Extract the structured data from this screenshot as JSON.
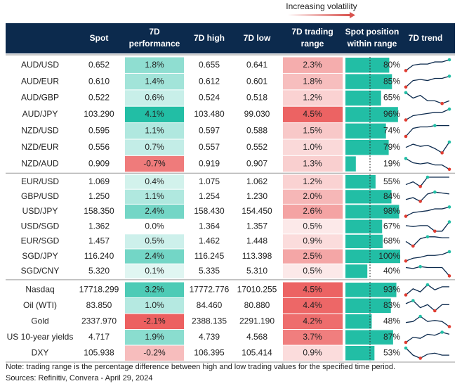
{
  "header": {
    "top_label": "Increasing volatility",
    "columns": [
      [
        "Spot"
      ],
      [
        "7D",
        "performance"
      ],
      [
        "7D high"
      ],
      [
        "7D low"
      ],
      [
        "7D trading",
        "range"
      ],
      [
        "Spot position",
        "within range"
      ],
      [
        "7D trend"
      ]
    ]
  },
  "groups": [
    {
      "rows": [
        {
          "name": "AUD/USD",
          "spot": "0.652",
          "perf": {
            "value": 1.8,
            "label": "1.8%"
          },
          "high": "0.655",
          "low": "0.641",
          "range": {
            "value": 2.3,
            "label": "2.3%"
          },
          "position": {
            "value": 80,
            "label": "80%"
          },
          "trend": [
            0,
            5,
            6,
            6,
            8,
            8,
            10
          ]
        },
        {
          "name": "AUD/EUR",
          "spot": "0.610",
          "perf": {
            "value": 1.4,
            "label": "1.4%"
          },
          "high": "0.612",
          "low": "0.601",
          "range": {
            "value": 1.8,
            "label": "1.8%"
          },
          "position": {
            "value": 85,
            "label": "85%"
          },
          "trend": [
            0,
            6,
            7,
            6,
            8,
            8,
            10
          ]
        },
        {
          "name": "AUD/GBP",
          "spot": "0.522",
          "perf": {
            "value": 0.6,
            "label": "0.6%"
          },
          "high": "0.524",
          "low": "0.518",
          "range": {
            "value": 1.2,
            "label": "1.2%"
          },
          "position": {
            "value": 65,
            "label": "65%"
          },
          "trend": [
            10,
            8,
            9,
            7,
            7,
            6,
            7
          ]
        },
        {
          "name": "AUD/JPY",
          "spot": "103.290",
          "perf": {
            "value": 4.1,
            "label": "4.1%"
          },
          "high": "103.480",
          "low": "99.030",
          "range": {
            "value": 4.5,
            "label": "4.5%"
          },
          "position": {
            "value": 96,
            "label": "96%"
          },
          "trend": [
            0,
            4,
            5,
            6,
            7,
            7,
            10
          ]
        },
        {
          "name": "NZD/USD",
          "spot": "0.595",
          "perf": {
            "value": 1.1,
            "label": "1.1%"
          },
          "high": "0.597",
          "low": "0.588",
          "range": {
            "value": 1.5,
            "label": "1.5%"
          },
          "position": {
            "value": 74,
            "label": "74%"
          },
          "trend": [
            0,
            6,
            7,
            7,
            8,
            8,
            8
          ]
        },
        {
          "name": "NZD/EUR",
          "spot": "0.556",
          "perf": {
            "value": 0.7,
            "label": "0.7%"
          },
          "high": "0.557",
          "low": "0.552",
          "range": {
            "value": 1,
            "label": "1.0%"
          },
          "position": {
            "value": 79,
            "label": "79%"
          },
          "trend": [
            5,
            8,
            6,
            7,
            4,
            0,
            10
          ]
        },
        {
          "name": "NZD/AUD",
          "spot": "0.909",
          "perf": {
            "value": -0.7,
            "label": "-0.7%"
          },
          "high": "0.919",
          "low": "0.907",
          "range": {
            "value": 1.3,
            "label": "1.3%"
          },
          "position": {
            "value": 19,
            "label": "19%"
          },
          "trend": [
            10,
            6,
            5,
            6,
            4,
            4,
            0
          ]
        }
      ]
    },
    {
      "rows": [
        {
          "name": "EUR/USD",
          "spot": "1.069",
          "perf": {
            "value": 0.4,
            "label": "0.4%"
          },
          "high": "1.075",
          "low": "1.062",
          "range": {
            "value": 1.2,
            "label": "1.2%"
          },
          "position": {
            "value": 55,
            "label": "55%"
          },
          "trend": [
            2,
            5,
            0,
            10,
            10,
            10,
            10
          ]
        },
        {
          "name": "GBP/USD",
          "spot": "1.250",
          "perf": {
            "value": 1.1,
            "label": "1.1%"
          },
          "high": "1.254",
          "low": "1.230",
          "range": {
            "value": 2,
            "label": "2.0%"
          },
          "position": {
            "value": 84,
            "label": "84%"
          },
          "trend": [
            2,
            4,
            0,
            8,
            10,
            9,
            8
          ]
        },
        {
          "name": "USD/JPY",
          "spot": "158.350",
          "perf": {
            "value": 2.4,
            "label": "2.4%"
          },
          "high": "158.430",
          "low": "154.450",
          "range": {
            "value": 2.6,
            "label": "2.6%"
          },
          "position": {
            "value": 98,
            "label": "98%"
          },
          "trend": [
            0,
            4,
            5,
            6,
            8,
            8,
            10
          ]
        },
        {
          "name": "USD/SGD",
          "spot": "1.362",
          "perf": {
            "value": 0,
            "label": "0.0%"
          },
          "high": "1.364",
          "low": "1.357",
          "range": {
            "value": 0.5,
            "label": "0.5%"
          },
          "position": {
            "value": 67,
            "label": "67%"
          },
          "trend": [
            6,
            5,
            6,
            6,
            0,
            0,
            10
          ]
        },
        {
          "name": "EUR/SGD",
          "spot": "1.457",
          "perf": {
            "value": 0.5,
            "label": "0.5%"
          },
          "high": "1.462",
          "low": "1.448",
          "range": {
            "value": 0.9,
            "label": "0.9%"
          },
          "position": {
            "value": 68,
            "label": "68%"
          },
          "trend": [
            5,
            0,
            8,
            10,
            10,
            9,
            9
          ]
        },
        {
          "name": "SGD/JPY",
          "spot": "116.240",
          "perf": {
            "value": 2.4,
            "label": "2.4%"
          },
          "high": "116.245",
          "low": "113.398",
          "range": {
            "value": 2.5,
            "label": "2.5%"
          },
          "position": {
            "value": 100,
            "label": "100%"
          },
          "trend": [
            0,
            3,
            4,
            6,
            6,
            7,
            10
          ]
        },
        {
          "name": "SGD/CNY",
          "spot": "5.320",
          "perf": {
            "value": 0.1,
            "label": "0.1%"
          },
          "high": "5.335",
          "low": "5.310",
          "range": {
            "value": 0.5,
            "label": "0.5%"
          },
          "position": {
            "value": 40,
            "label": "40%"
          },
          "trend": [
            9,
            8,
            10,
            9,
            9,
            9,
            0
          ]
        }
      ]
    },
    {
      "rows": [
        {
          "name": "Nasdaq",
          "spot": "17718.299",
          "perf": {
            "value": 3.2,
            "label": "3.2%"
          },
          "high": "17772.776",
          "low": "17010.255",
          "range": {
            "value": 4.5,
            "label": "4.5%"
          },
          "position": {
            "value": 93,
            "label": "93%"
          },
          "trend": [
            0,
            6,
            3,
            10,
            5,
            8,
            8
          ]
        },
        {
          "name": "Oil (WTI)",
          "spot": "83.850",
          "perf": {
            "value": 1,
            "label": "1.0%"
          },
          "high": "84.460",
          "low": "80.880",
          "range": {
            "value": 4.4,
            "label": "4.4%"
          },
          "position": {
            "value": 83,
            "label": "83%"
          },
          "trend": [
            7,
            10,
            3,
            6,
            0,
            6,
            6
          ]
        },
        {
          "name": "Gold",
          "spot": "2337.970",
          "perf": {
            "value": -2.1,
            "label": "-2.1%"
          },
          "high": "2388.135",
          "low": "2291.190",
          "range": {
            "value": 4.2,
            "label": "4.2%"
          },
          "position": {
            "value": 48,
            "label": "48%"
          },
          "trend": [
            4,
            5,
            10,
            5,
            6,
            5,
            0
          ]
        },
        {
          "name": "US 10-year yields",
          "spot": "4.717",
          "perf": {
            "value": 1.9,
            "label": "1.9%"
          },
          "high": "4.739",
          "low": "4.568",
          "range": {
            "value": 3.7,
            "label": "3.7%"
          },
          "position": {
            "value": 87,
            "label": "87%"
          },
          "trend": [
            0,
            5,
            4,
            8,
            7,
            10,
            8
          ]
        },
        {
          "name": "DXY",
          "spot": "105.938",
          "perf": {
            "value": -0.2,
            "label": "-0.2%"
          },
          "high": "106.395",
          "low": "105.414",
          "range": {
            "value": 0.9,
            "label": "0.9%"
          },
          "position": {
            "value": 53,
            "label": "53%"
          },
          "trend": [
            10,
            3,
            0,
            4,
            5,
            3,
            3
          ]
        }
      ]
    }
  ],
  "notes": [
    "Note: trading range is the percentage difference between high and low trading values for the specified time period.",
    "Sources: Refinitiv, Convera - April 29, 2024"
  ]
}
